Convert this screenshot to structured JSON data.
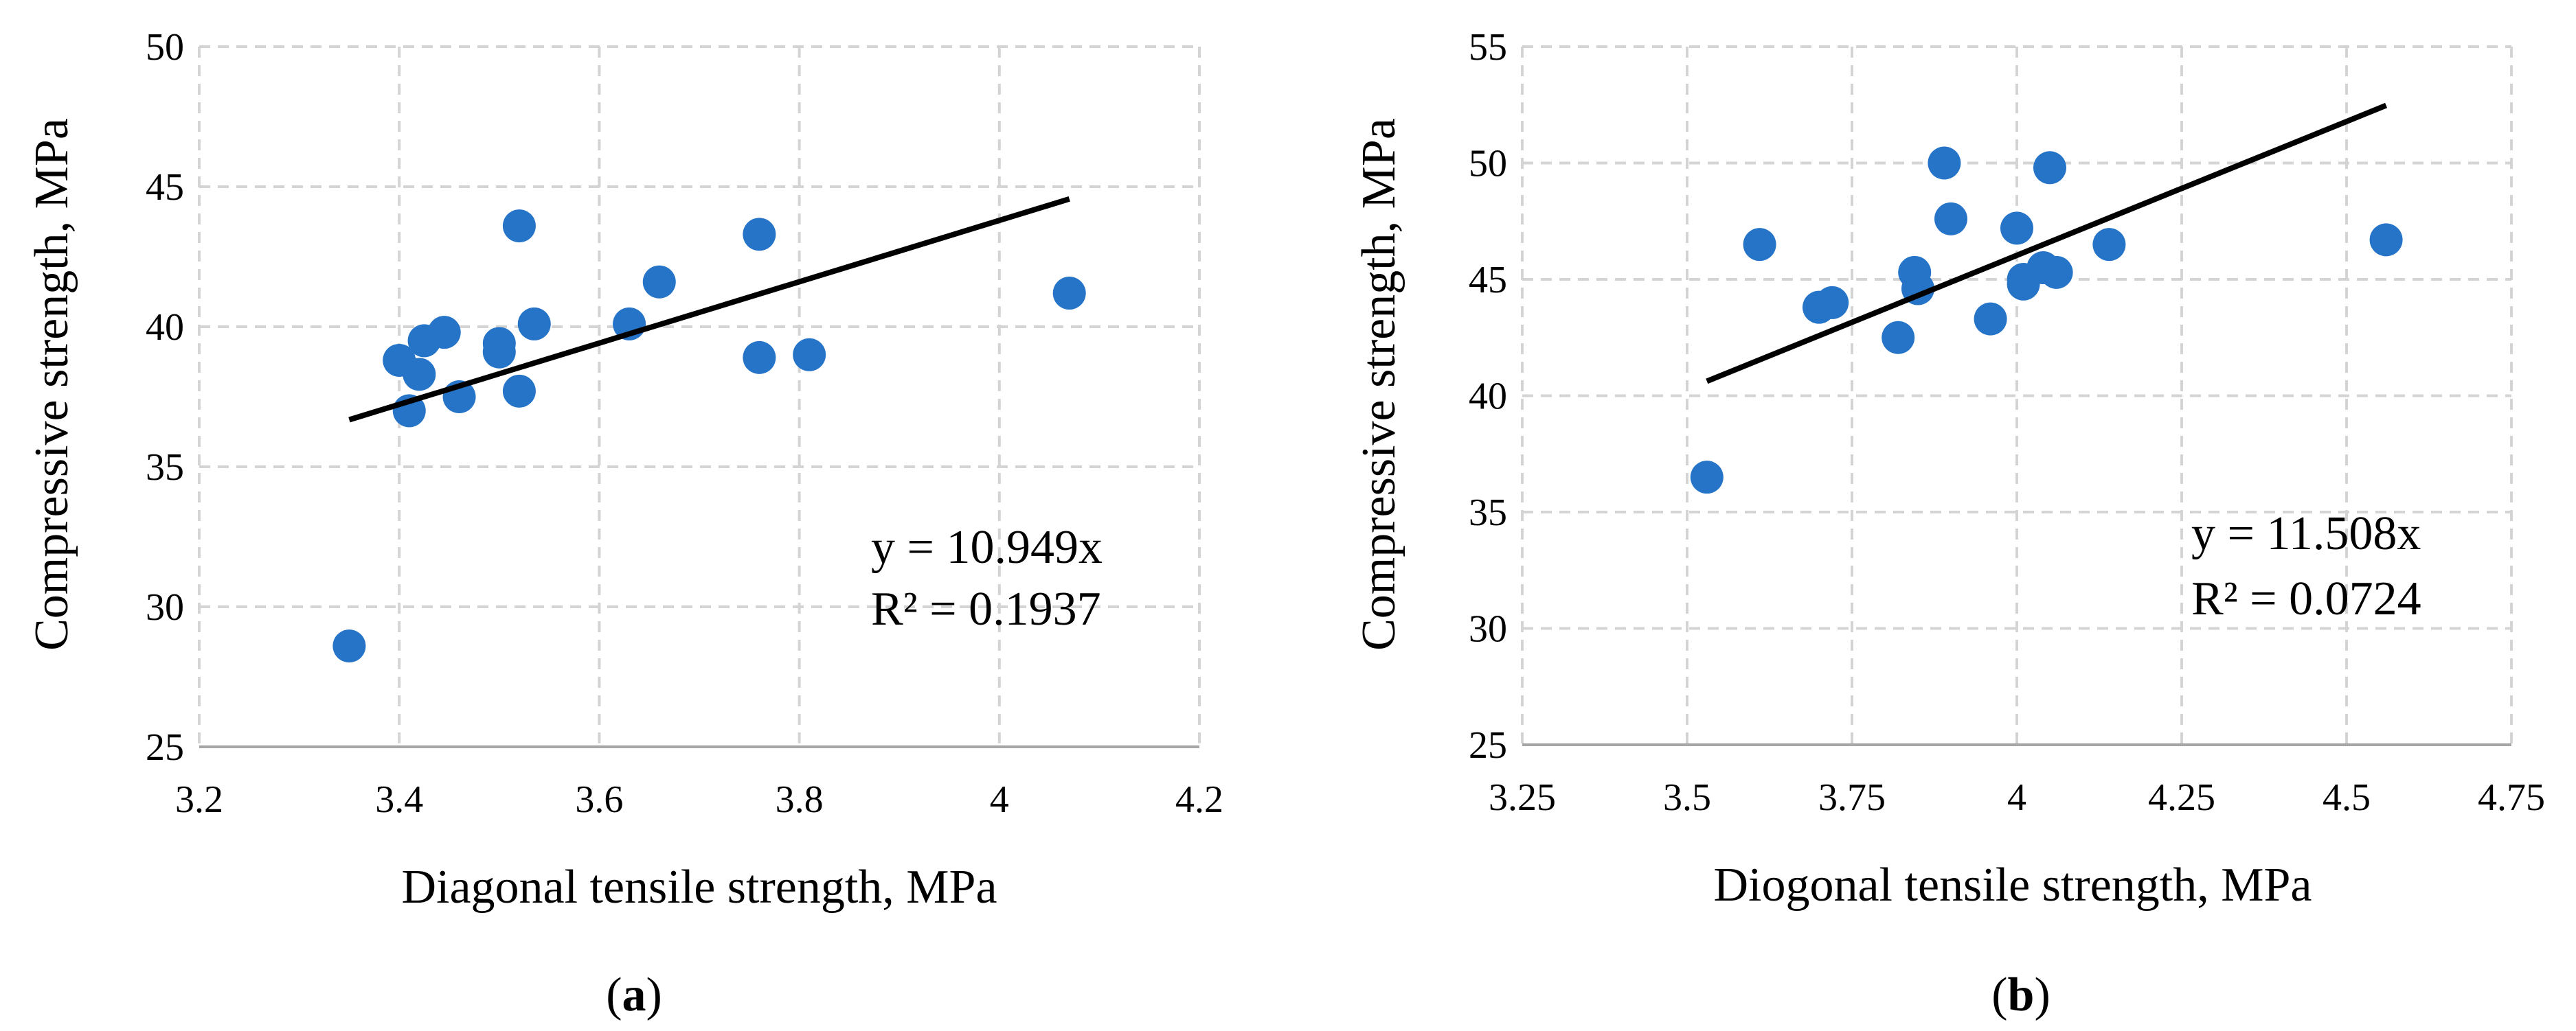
{
  "chart_data": [
    {
      "type": "scatter",
      "panel_label": "a",
      "xlabel": "Diagonal tensile strength, MPa",
      "ylabel": "Compressive strength, MPa",
      "xlim": [
        3.2,
        4.2
      ],
      "ylim": [
        25,
        50
      ],
      "xticks": [
        3.2,
        3.4,
        3.6,
        3.8,
        4.0,
        4.2
      ],
      "yticks": [
        25,
        30,
        35,
        40,
        45,
        50
      ],
      "xtick_labels": [
        "3.2",
        "3.4",
        "3.6",
        "3.8",
        "4",
        "4.2"
      ],
      "ytick_labels": [
        "25",
        "30",
        "35",
        "40",
        "45",
        "50"
      ],
      "grid": true,
      "series": [
        {
          "name": "data",
          "color": "#2574c8",
          "points": [
            [
              3.35,
              28.6
            ],
            [
              3.4,
              38.8
            ],
            [
              3.41,
              37.0
            ],
            [
              3.42,
              38.3
            ],
            [
              3.425,
              39.5
            ],
            [
              3.445,
              39.8
            ],
            [
              3.46,
              37.5
            ],
            [
              3.5,
              39.4
            ],
            [
              3.5,
              39.1
            ],
            [
              3.52,
              37.7
            ],
            [
              3.52,
              43.6
            ],
            [
              3.535,
              40.1
            ],
            [
              3.63,
              40.1
            ],
            [
              3.66,
              41.6
            ],
            [
              3.76,
              43.3
            ],
            [
              3.76,
              38.9
            ],
            [
              3.81,
              39.0
            ],
            [
              4.07,
              41.2
            ]
          ]
        }
      ],
      "trendline": {
        "slope": 10.949,
        "x_range": [
          3.35,
          4.07
        ],
        "equation": "y = 10.949x",
        "r_squared": "R² = 0.1937"
      },
      "caption_open": "(",
      "caption_close": ")"
    },
    {
      "type": "scatter",
      "panel_label": "b",
      "xlabel": "Diogonal tensile strength, MPa",
      "ylabel": "Compressive strength, MPa",
      "xlim": [
        3.25,
        4.75
      ],
      "ylim": [
        25,
        55
      ],
      "xticks": [
        3.25,
        3.5,
        3.75,
        4.0,
        4.25,
        4.5,
        4.75
      ],
      "yticks": [
        25,
        30,
        35,
        40,
        45,
        50,
        55
      ],
      "xtick_labels": [
        "3.25",
        "3.5",
        "3.75",
        "4",
        "4.25",
        "4.5",
        "4.75"
      ],
      "ytick_labels": [
        "25",
        "30",
        "35",
        "40",
        "45",
        "50",
        "55"
      ],
      "grid": true,
      "series": [
        {
          "name": "data",
          "color": "#2574c8",
          "points": [
            [
              3.53,
              36.5
            ],
            [
              3.61,
              46.5
            ],
            [
              3.7,
              43.8
            ],
            [
              3.72,
              44.0
            ],
            [
              3.82,
              42.5
            ],
            [
              3.845,
              45.3
            ],
            [
              3.85,
              44.6
            ],
            [
              3.89,
              50.0
            ],
            [
              3.9,
              47.6
            ],
            [
              3.96,
              43.3
            ],
            [
              4.0,
              47.2
            ],
            [
              4.01,
              45.0
            ],
            [
              4.01,
              44.8
            ],
            [
              4.04,
              45.5
            ],
            [
              4.05,
              49.8
            ],
            [
              4.06,
              45.3
            ],
            [
              4.14,
              46.5
            ],
            [
              4.56,
              46.7
            ]
          ]
        }
      ],
      "trendline": {
        "slope": 11.508,
        "x_range": [
          3.53,
          4.56
        ],
        "equation": "y = 11.508x",
        "r_squared": "R² = 0.0724"
      },
      "caption_open": "(",
      "caption_close": ")"
    }
  ]
}
